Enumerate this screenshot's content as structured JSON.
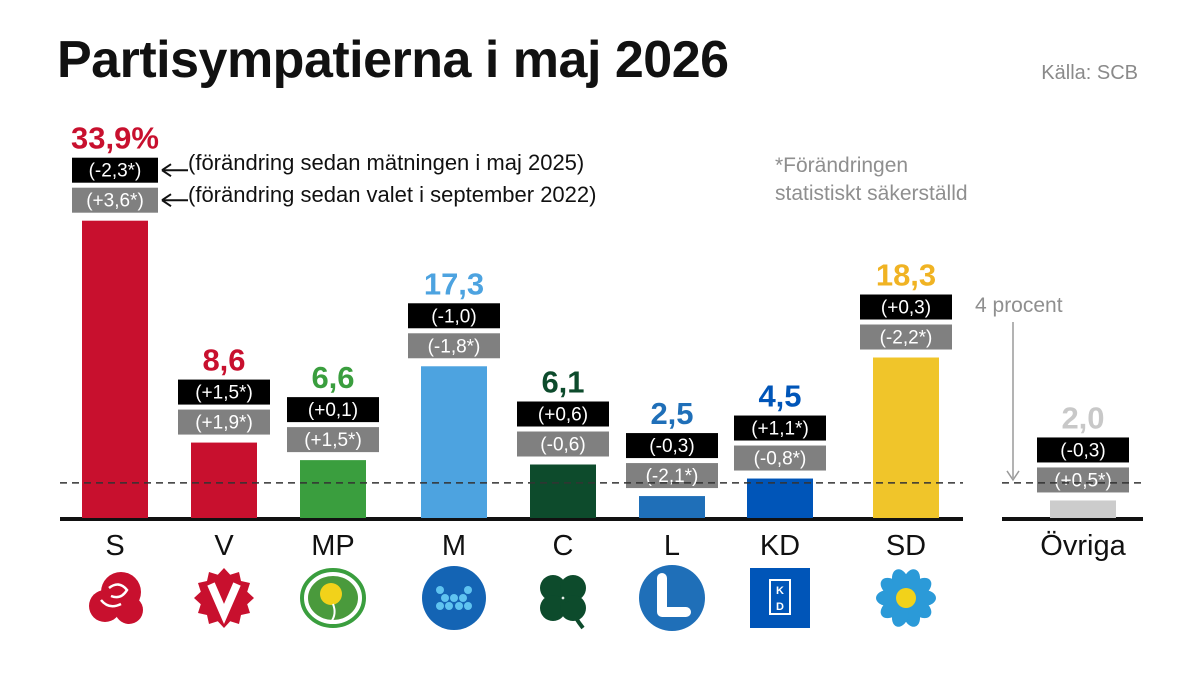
{
  "title": "Partisympatierna i maj 2026",
  "source": "Källa: SCB",
  "footnote": [
    "*Förändringen",
    "statistiskt säkerställd"
  ],
  "legend": {
    "line1": "(förändring sedan mätningen i maj 2025)",
    "line2": "(förändring sedan valet i september 2022)"
  },
  "threshold_label": "4 procent",
  "colors": {
    "change_since_year": "#000000",
    "change_since_election": "#808080",
    "threshold_line": "#333333",
    "axis": "#111111"
  },
  "chart_data": {
    "type": "bar",
    "unit": "%",
    "threshold": 4,
    "ylim": [
      0,
      35
    ],
    "grid": false,
    "categories": [
      "S",
      "V",
      "MP",
      "M",
      "C",
      "L",
      "KD",
      "SD",
      "Övriga"
    ],
    "values": [
      33.9,
      8.6,
      6.6,
      17.3,
      6.1,
      2.5,
      4.5,
      18.3,
      2.0
    ],
    "value_labels": [
      "33,9%",
      "8,6",
      "6,6",
      "17,3",
      "6,1",
      "2,5",
      "4,5",
      "18,3",
      "2,0"
    ],
    "change_since_may_2025": [
      "(-2,3*)",
      "(+1,5*)",
      "(+0,1)",
      "(-1,0)",
      "(+0,6)",
      "(-0,3)",
      "(+1,1*)",
      "(+0,3)",
      "(-0,3)"
    ],
    "change_since_election_2022": [
      "(+3,6*)",
      "(+1,9*)",
      "(+1,5*)",
      "(-1,8*)",
      "(-0,6)",
      "(-2,1*)",
      "(-0,8*)",
      "(-2,2*)",
      "(+0,5*)"
    ],
    "bar_colors": [
      "#c8102e",
      "#c8102e",
      "#3a9e3e",
      "#4da3e0",
      "#0d4b2c",
      "#1f6fb8",
      "#0055b8",
      "#f0c52a",
      "#cccccc"
    ],
    "label_colors": [
      "#c8102e",
      "#c8102e",
      "#3a9e3e",
      "#4da3e0",
      "#0d4b2c",
      "#1f6fb8",
      "#0055b8",
      "#f0b323",
      "#c8c8c8"
    ],
    "logos": [
      "rose-icon",
      "v-badge-icon",
      "dandelion-icon",
      "m-dots-icon",
      "clover-icon",
      "l-badge-icon",
      "kd-box-icon",
      "anemone-icon",
      ""
    ]
  }
}
